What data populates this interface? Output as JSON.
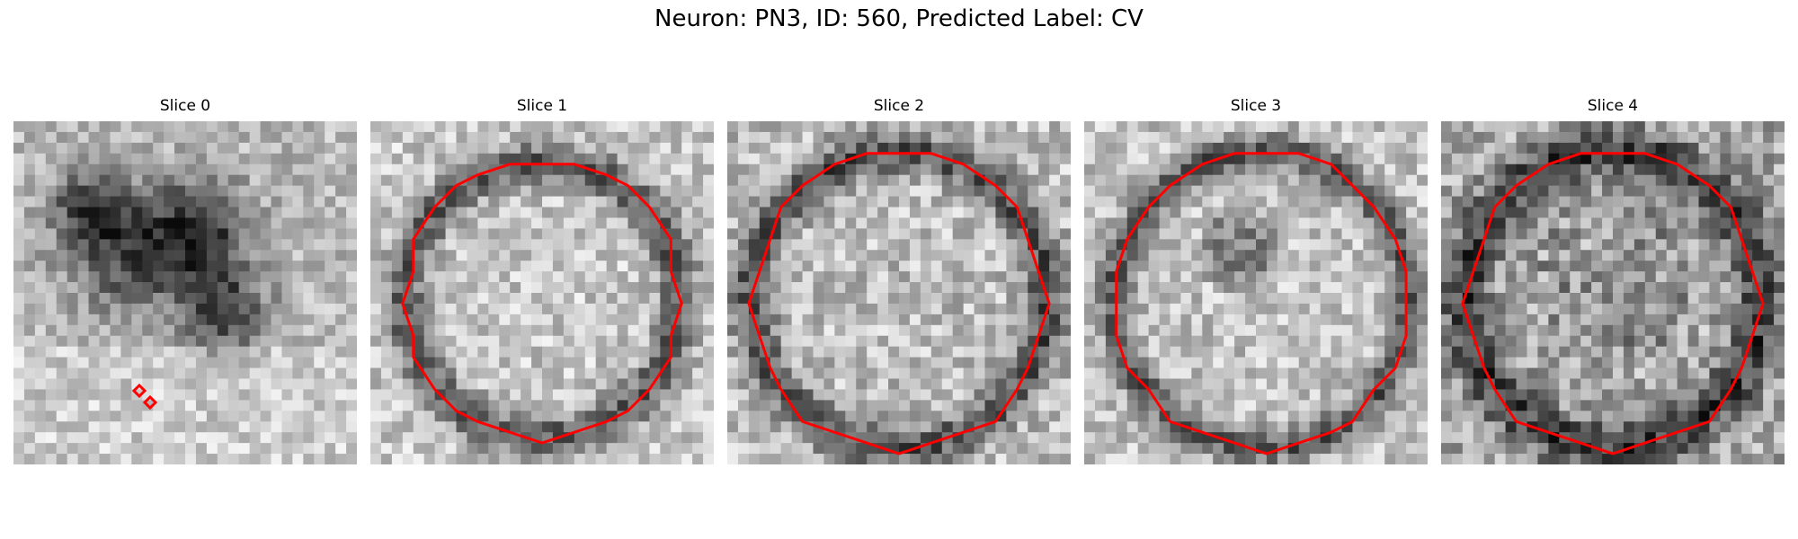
{
  "figure": {
    "title": "Neuron: PN3, ID: 560, Predicted Label: CV"
  },
  "panels": [
    {
      "title": "Slice 0",
      "seed": 11,
      "contour": "tiny"
    },
    {
      "title": "Slice 1",
      "seed": 23,
      "contour": "round"
    },
    {
      "title": "Slice 2",
      "seed": 37,
      "contour": "round"
    },
    {
      "title": "Slice 3",
      "seed": 41,
      "contour": "round"
    },
    {
      "title": "Slice 4",
      "seed": 59,
      "contour": "round"
    }
  ],
  "colors": {
    "contour": "#ff0000",
    "background": "#ffffff"
  }
}
